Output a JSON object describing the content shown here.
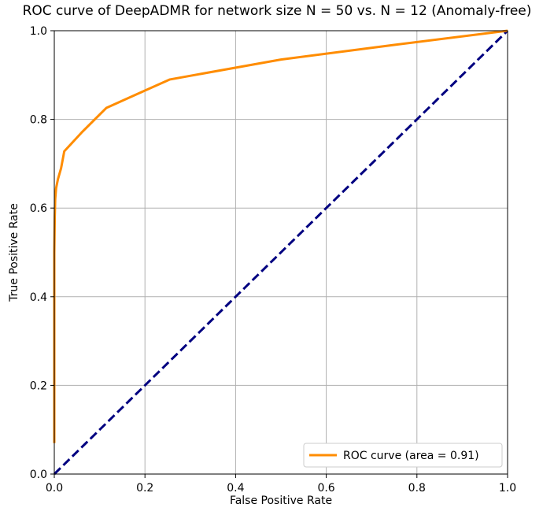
{
  "chart_data": {
    "type": "line",
    "title": "ROC curve of DeepADMR for network size N = 50 vs. N = 12 (Anomaly-free)",
    "xlabel": "False Positive Rate",
    "ylabel": "True Positive Rate",
    "xlim": [
      0.0,
      1.0
    ],
    "ylim": [
      0.0,
      1.0
    ],
    "xticks": [
      "0.0",
      "0.2",
      "0.4",
      "0.6",
      "0.8",
      "1.0"
    ],
    "yticks": [
      "0.0",
      "0.2",
      "0.4",
      "0.6",
      "0.8",
      "1.0"
    ],
    "grid": true,
    "legend_position": "bottom-right",
    "series": [
      {
        "name": "ROC curve (area = 0.91)",
        "color": "#ff8c00",
        "style": "solid",
        "x": [
          0.0,
          0.0,
          0.0,
          0.001,
          0.002,
          0.004,
          0.008,
          0.015,
          0.022,
          0.06,
          0.115,
          0.2,
          0.255,
          0.5,
          0.75,
          1.0
        ],
        "y": [
          0.07,
          0.3,
          0.5,
          0.58,
          0.62,
          0.645,
          0.665,
          0.69,
          0.728,
          0.77,
          0.826,
          0.865,
          0.89,
          0.935,
          0.968,
          1.0
        ]
      },
      {
        "color": "#000080",
        "style": "dashed",
        "x": [
          0.0,
          1.0
        ],
        "y": [
          0.0,
          1.0
        ]
      }
    ]
  }
}
